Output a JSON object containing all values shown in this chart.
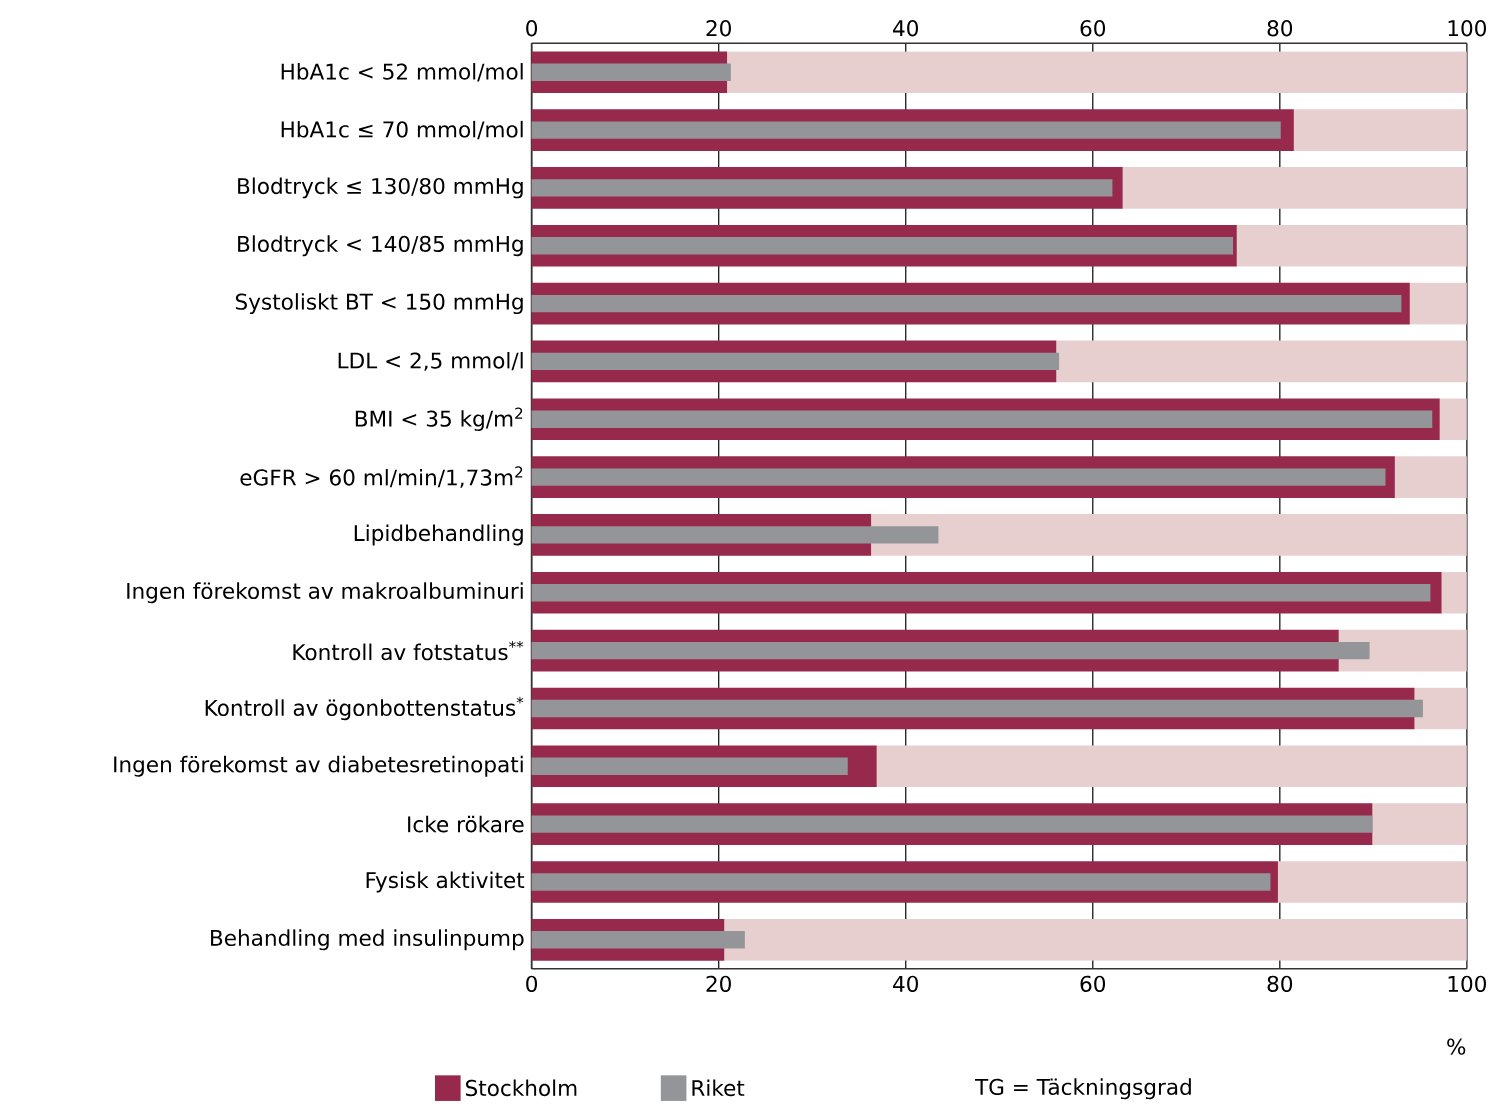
{
  "chart_data": {
    "type": "bar",
    "orientation": "horizontal",
    "categories": [
      "HbA1c < 52 mmol/mol",
      "HbA1c ≤ 70 mmol/mol",
      "Blodtryck ≤ 130/80 mmHg",
      "Blodtryck < 140/85 mmHg",
      "Systoliskt BT < 150 mmHg",
      "LDL < 2,5 mmol/l",
      "BMI < 35 kg/m$^{2}$",
      "eGFR > 60 ml/min/1,73m$^{2}$",
      "Lipidbehandling",
      "Ingen förekomst av makroalbuminuri",
      "Kontroll av fotstatus$^{**}$",
      "Kontroll av ögonbottenstatus$^{*}$",
      "Ingen förekomst av diabetesretinopati",
      "Icke rökare",
      "Fysisk aktivitet",
      "Behandling med insulinpump"
    ],
    "series": [
      {
        "color": "#e8cfcf",
        "base": [
          20.9,
          81.5,
          63.2,
          75.4,
          93.9,
          56.1,
          97.1,
          92.3,
          36.3,
          97.3,
          86.3,
          94.4,
          36.9,
          89.9,
          79.8,
          20.6
        ],
        "values": [
          79.1,
          18.5,
          36.8,
          24.6,
          6.1,
          43.9,
          2.9,
          7.7,
          63.7,
          2.7,
          13.7,
          5.6,
          63.1,
          10.1,
          20.2,
          79.4
        ]
      },
      {
        "name": "Stockholm",
        "color": "#972a4c",
        "values": [
          20.9,
          81.5,
          63.2,
          75.4,
          93.9,
          56.1,
          97.1,
          92.3,
          36.3,
          97.3,
          86.3,
          94.4,
          36.9,
          89.9,
          79.8,
          20.6
        ]
      },
      {
        "name": "Riket",
        "color": "#939598",
        "values": [
          21.3,
          80.1,
          62.1,
          75.0,
          93.0,
          56.4,
          96.3,
          91.3,
          43.5,
          96.1,
          89.6,
          95.3,
          33.8,
          89.9,
          79.0,
          22.8
        ]
      }
    ],
    "xlim": [
      0,
      100
    ],
    "xticks": [
      0,
      20,
      40,
      60,
      80,
      100
    ],
    "x2lim": [
      0,
      100
    ],
    "x2ticks": [
      0,
      20,
      40,
      60,
      80,
      100
    ],
    "xlabel": "%",
    "grid": "x",
    "legend": "bottom",
    "annotations": [
      "TG = Täckningsgrad"
    ]
  }
}
